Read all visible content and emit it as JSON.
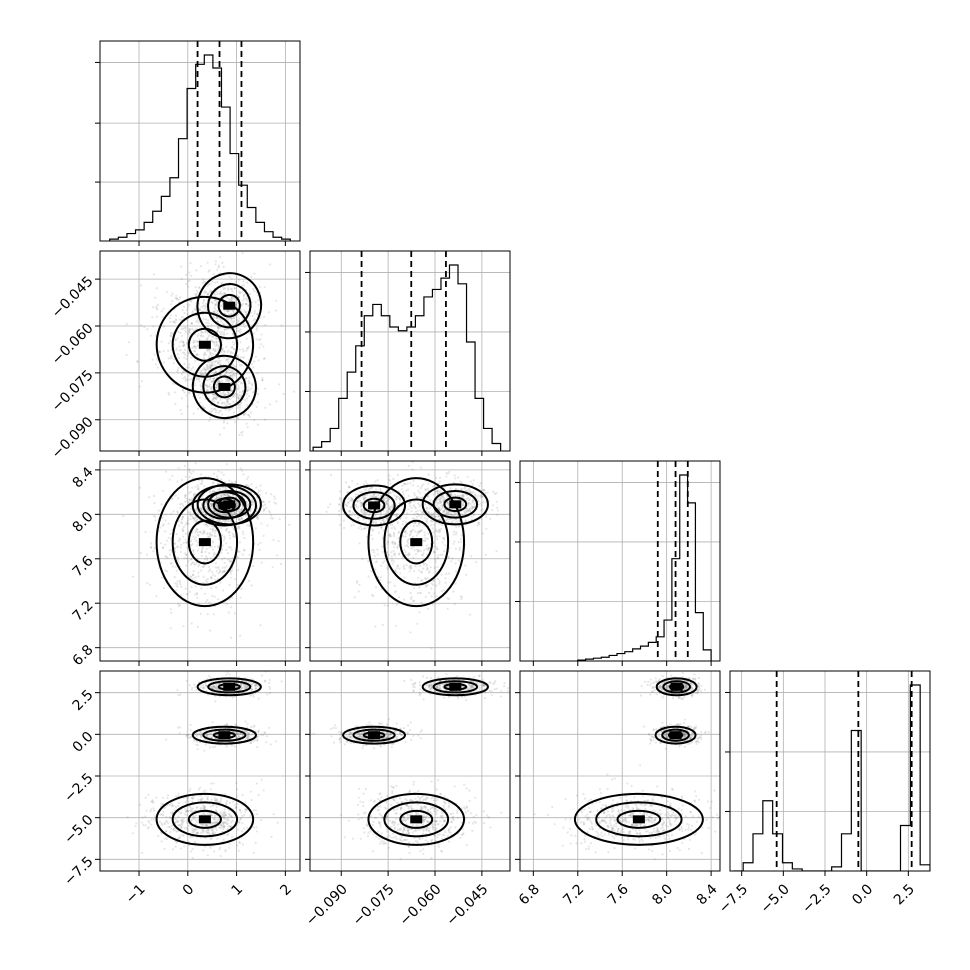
{
  "chart_data": {
    "type": "corner",
    "params": [
      {
        "range": [
          -1.8,
          2.3
        ],
        "ticks": [
          -1,
          0,
          1,
          2
        ],
        "tick_labels": [
          "−1",
          "0",
          "1",
          "2"
        ],
        "quantiles": [
          0.2,
          0.65,
          1.1
        ],
        "hist_edges_range": [
          -1.6,
          2.1
        ],
        "hist_counts": [
          0.01,
          0.02,
          0.04,
          0.06,
          0.1,
          0.16,
          0.24,
          0.34,
          0.55,
          0.82,
          0.95,
          1.0,
          0.93,
          0.72,
          0.47,
          0.3,
          0.18,
          0.1,
          0.05,
          0.02,
          0.01
        ],
        "diag_yticks": [
          0.33,
          0.66,
          1.0
        ]
      },
      {
        "range": [
          -0.1,
          -0.036
        ],
        "ticks": [
          -0.09,
          -0.075,
          -0.06,
          -0.045
        ],
        "tick_labels": [
          "−0.090",
          "−0.075",
          "−0.060",
          "−0.045"
        ],
        "quantiles": [
          -0.0835,
          -0.0676,
          -0.0565
        ],
        "hist_edges_range": [
          -0.099,
          -0.039
        ],
        "hist_counts": [
          0.02,
          0.05,
          0.12,
          0.28,
          0.42,
          0.56,
          0.72,
          0.78,
          0.72,
          0.66,
          0.64,
          0.66,
          0.72,
          0.82,
          0.86,
          0.92,
          0.99,
          0.89,
          0.58,
          0.28,
          0.12,
          0.04
        ],
        "diag_yticks": [
          0.27,
          0.54,
          0.81
        ]
      },
      {
        "range": [
          6.68,
          8.48
        ],
        "ticks": [
          6.8,
          7.2,
          7.6,
          8.0,
          8.4
        ],
        "tick_labels": [
          "6.8",
          "7.2",
          "7.6",
          "8.0",
          "8.4"
        ],
        "quantiles": [
          7.92,
          8.08,
          8.19
        ],
        "hist_edges_range": [
          7.2,
          8.4
        ],
        "hist_counts": [
          0.005,
          0.01,
          0.015,
          0.02,
          0.03,
          0.04,
          0.05,
          0.065,
          0.08,
          0.1,
          0.13,
          0.22,
          0.55,
          1.0,
          0.85,
          0.26,
          0.06
        ],
        "diag_yticks": [
          0.26,
          0.52,
          0.78
        ]
      },
      {
        "range": [
          -8.2,
          3.8
        ],
        "ticks": [
          -7.5,
          -5.0,
          -2.5,
          0.0,
          2.5
        ],
        "tick_labels": [
          "−7.5",
          "−5.0",
          "−2.5",
          "0.0",
          "2.5"
        ],
        "quantiles": [
          -5.4,
          -0.5,
          2.7
        ],
        "hist_edges_range": [
          -8.0,
          3.8
        ],
        "hist_counts": [
          0.0,
          0.04,
          0.18,
          0.34,
          0.18,
          0.04,
          0.01,
          0.0,
          0.0,
          0.0,
          0.02,
          0.18,
          0.68,
          0.0,
          0.0,
          0.0,
          0.0,
          0.22,
          0.9,
          0.03
        ],
        "diag_yticks": [
          0.27,
          0.54,
          0.81
        ]
      }
    ],
    "clusters": [
      {
        "mean": [
          0.85,
          -0.0535,
          8.09,
          2.85
        ],
        "sd": [
          0.36,
          0.0058,
          0.1,
          0.28
        ],
        "weight": 0.3
      },
      {
        "mean": [
          0.75,
          -0.0795,
          8.08,
          -0.05
        ],
        "sd": [
          0.36,
          0.0055,
          0.1,
          0.28
        ],
        "weight": 0.3
      },
      {
        "mean": [
          0.35,
          -0.066,
          7.75,
          -5.1
        ],
        "sd": [
          0.55,
          0.0085,
          0.32,
          0.85
        ],
        "weight": 0.4
      }
    ],
    "grid": true
  }
}
